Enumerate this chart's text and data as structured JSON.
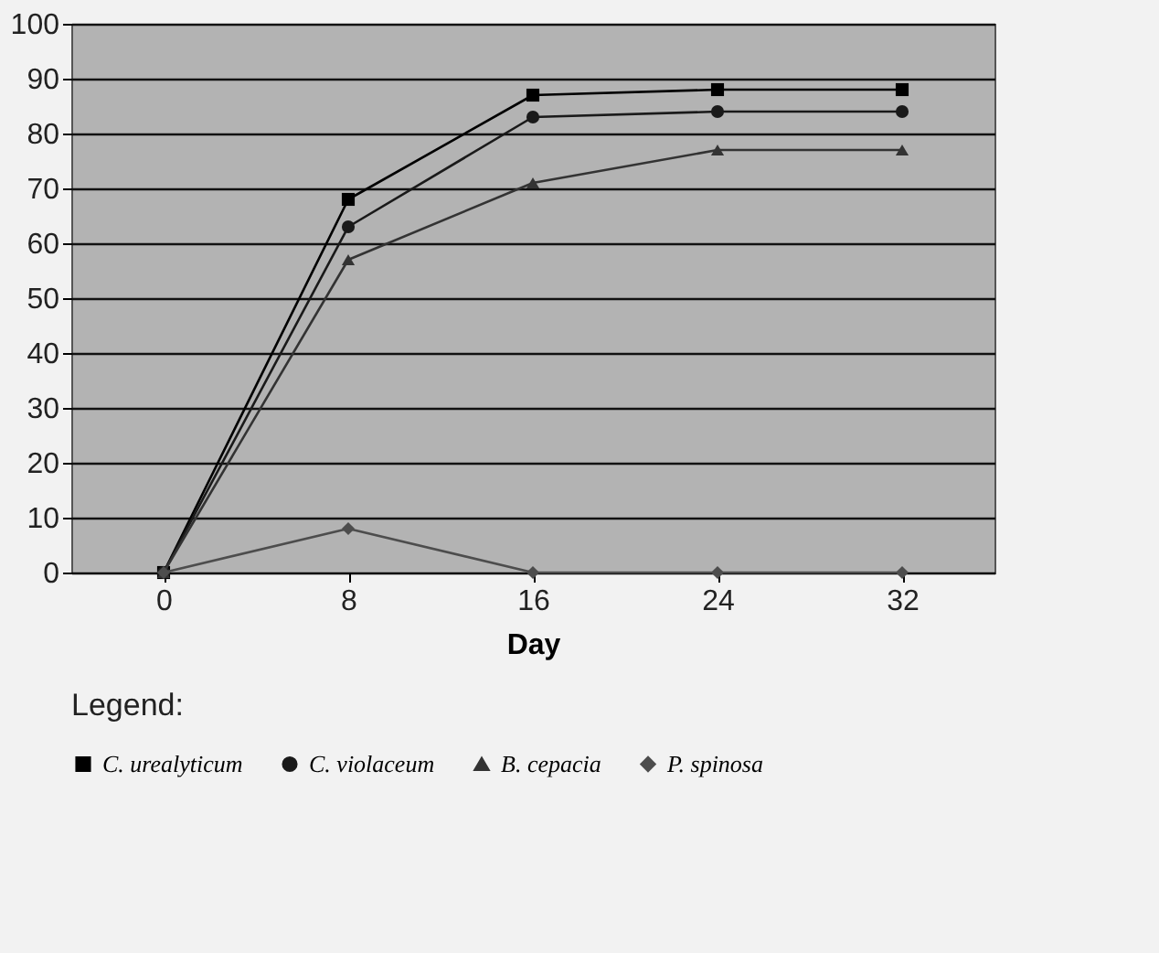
{
  "chart_data": {
    "type": "line",
    "xlabel": "Day",
    "legend_title": "Legend:",
    "categories": [
      "0",
      "8",
      "16",
      "24",
      "32"
    ],
    "series": [
      {
        "name": "C. urealyticum",
        "color": "#000000",
        "marker": "square",
        "values": [
          0,
          68,
          87,
          88,
          88
        ]
      },
      {
        "name": "C. violaceum",
        "color": "#1a1a1a",
        "marker": "circle",
        "values": [
          0,
          63,
          83,
          84,
          84
        ]
      },
      {
        "name": "B. cepacia",
        "color": "#333333",
        "marker": "triangle",
        "values": [
          0,
          57,
          71,
          77,
          77
        ]
      },
      {
        "name": "P. spinosa",
        "color": "#4d4d4d",
        "marker": "diamond",
        "values": [
          0,
          8,
          0,
          0,
          0
        ]
      }
    ],
    "ylim": [
      0,
      100
    ],
    "yticks": [
      0,
      10,
      20,
      30,
      40,
      50,
      60,
      70,
      80,
      90,
      100
    ],
    "grid": "y",
    "legend": "bottom"
  }
}
